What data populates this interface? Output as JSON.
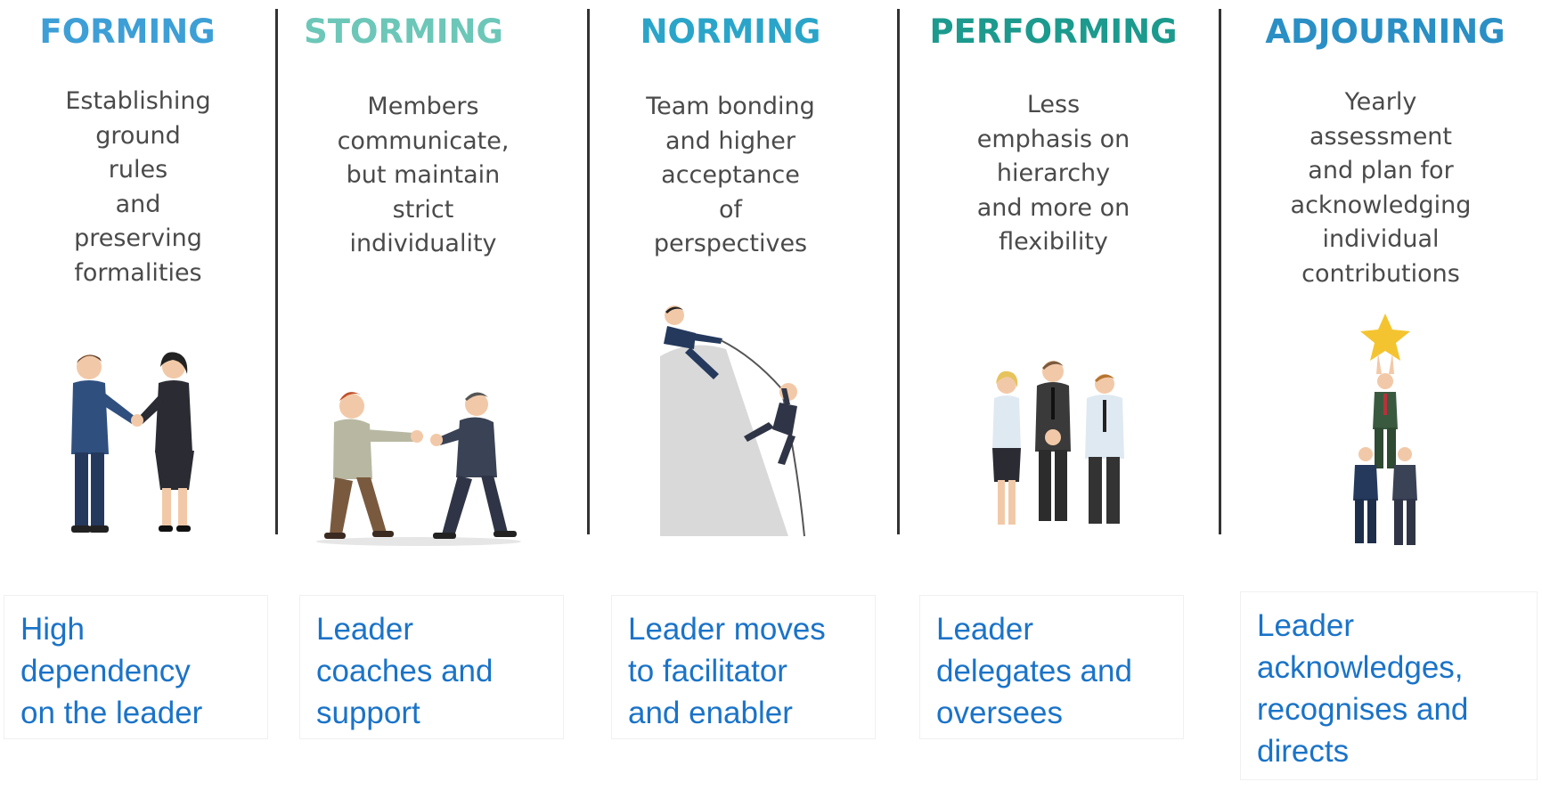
{
  "stages": [
    {
      "title": "FORMING",
      "color": "#3d9fd6",
      "description": [
        "Establishing",
        "ground",
        "rules",
        "and",
        "preserving",
        "formalities"
      ],
      "role": [
        "High",
        "dependency",
        "on the leader"
      ]
    },
    {
      "title": "STORMING",
      "color": "#6cc7b8",
      "description": [
        "Members",
        "communicate,",
        "but maintain",
        "strict",
        "individuality"
      ],
      "role": [
        "Leader",
        "coaches and",
        "support"
      ]
    },
    {
      "title": "NORMING",
      "color": "#2aa5c9",
      "description": [
        "Team bonding",
        "and higher",
        "acceptance",
        "of",
        "perspectives"
      ],
      "role": [
        "Leader moves",
        "to facilitator",
        "and enabler"
      ]
    },
    {
      "title": "PERFORMING",
      "color": "#1c9a8e",
      "description": [
        "Less",
        "emphasis on",
        "hierarchy",
        "and more on",
        "flexibility"
      ],
      "role": [
        "Leader",
        "delegates and",
        "oversees"
      ]
    },
    {
      "title": "ADJOURNING",
      "color": "#2a8fc4",
      "description": [
        "Yearly",
        "assessment",
        "and plan for",
        "acknowledging",
        "individual",
        "contributions"
      ],
      "role": [
        "Leader",
        "acknowledges,",
        "recognises and",
        "directs"
      ]
    }
  ],
  "illustrations": [
    "handshake-illustration",
    "fight-illustration",
    "climbing-illustration",
    "team-illustration",
    "star-lift-illustration"
  ]
}
